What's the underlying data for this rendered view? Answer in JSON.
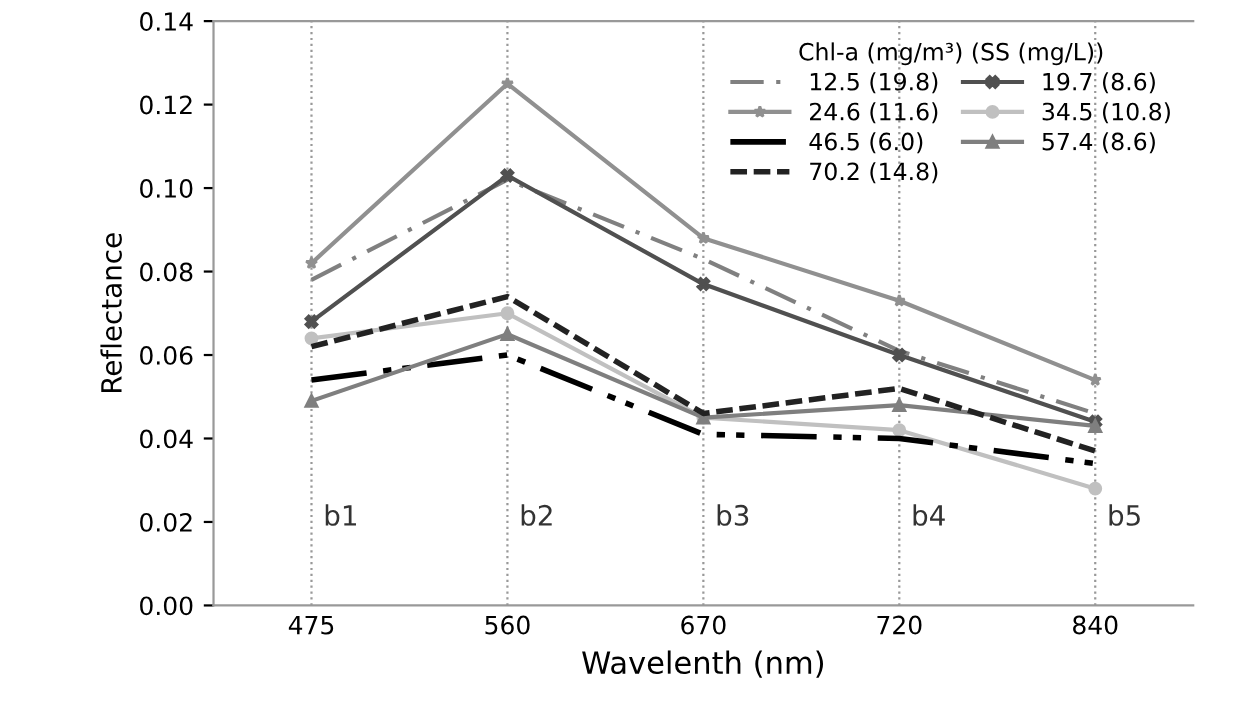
{
  "chart_data": {
    "type": "line",
    "xlabel": "Wavelenth (nm)",
    "ylabel": "Reflectance",
    "legend_title": "Chl-a (mg/m³) (SS (mg/L))",
    "categories": [
      "475",
      "560",
      "670",
      "720",
      "840"
    ],
    "series": [
      {
        "name": "12.5 (19.8)",
        "color": "#808080",
        "line_style": "dashdot",
        "marker": "none",
        "values": [
          0.078,
          0.102,
          0.083,
          0.061,
          0.046
        ]
      },
      {
        "name": "19.7 (8.6)",
        "color": "#505050",
        "line_style": "solid",
        "marker": "cross",
        "values": [
          0.068,
          0.103,
          0.077,
          0.06,
          0.044
        ]
      },
      {
        "name": "24.6 (11.6)",
        "color": "#909090",
        "line_style": "solid",
        "marker": "star",
        "values": [
          0.082,
          0.125,
          0.088,
          0.073,
          0.054
        ]
      },
      {
        "name": "34.5 (10.8)",
        "color": "#c0c0c0",
        "line_style": "solid",
        "marker": "circle",
        "values": [
          0.064,
          0.07,
          0.045,
          0.042,
          0.028
        ]
      },
      {
        "name": "46.5 (6.0)",
        "color": "#000000",
        "line_style": "dashdotdot",
        "marker": "none",
        "values": [
          0.054,
          0.06,
          0.041,
          0.04,
          0.034
        ]
      },
      {
        "name": "57.4 (8.6)",
        "color": "#7f7f7f",
        "line_style": "solid",
        "marker": "triangle",
        "values": [
          0.049,
          0.065,
          0.045,
          0.048,
          0.043
        ]
      },
      {
        "name": "70.2 (14.8)",
        "color": "#222222",
        "line_style": "dashed",
        "marker": "none",
        "values": [
          0.062,
          0.074,
          0.046,
          0.052,
          0.037
        ]
      }
    ],
    "ylim": [
      0,
      0.14
    ],
    "yticks": [
      {
        "value": 0,
        "label": "0.00"
      },
      {
        "value": 0.02,
        "label": "0.02"
      },
      {
        "value": 0.04,
        "label": "0.04"
      },
      {
        "value": 0.06,
        "label": "0.06"
      },
      {
        "value": 0.08,
        "label": "0.08"
      },
      {
        "value": 0.1,
        "label": "0.10"
      },
      {
        "value": 0.12,
        "label": "0.12"
      },
      {
        "value": 0.14,
        "label": "0.14"
      }
    ],
    "grid": "x",
    "legend": "top right",
    "annotations": [
      "b1",
      "b2",
      "b3",
      "b4",
      "b5"
    ]
  }
}
